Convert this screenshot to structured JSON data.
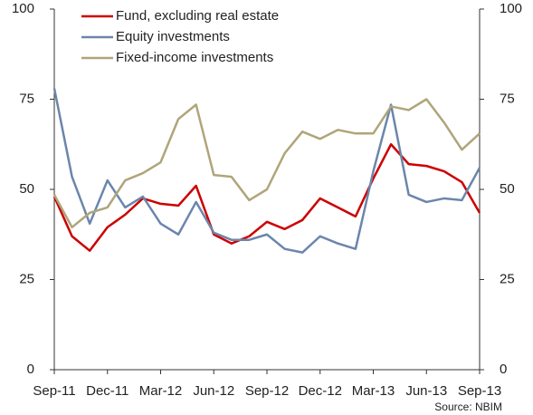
{
  "chart_data": {
    "type": "line",
    "categories": [
      "Sep-11",
      null,
      null,
      "Dec-11",
      null,
      null,
      "Mar-12",
      null,
      null,
      "Jun-12",
      null,
      null,
      "Sep-12",
      null,
      null,
      "Dec-12",
      null,
      null,
      "Mar-13",
      null,
      null,
      "Jun-13",
      null,
      null,
      "Sep-13"
    ],
    "series": [
      {
        "name": "Fund, excluding real estate",
        "color": "#cc0000",
        "values": [
          48,
          37,
          33,
          39.5,
          43,
          47.5,
          46,
          45.5,
          51,
          37.5,
          35,
          37,
          41,
          39,
          41.5,
          47.5,
          45,
          42.5,
          53,
          62.5,
          57,
          56.5,
          55,
          52,
          43.5
        ]
      },
      {
        "name": "Equity investments",
        "color": "#6b86ab",
        "values": [
          78,
          53.5,
          40.5,
          52.5,
          45,
          48,
          40.5,
          37.5,
          46.5,
          38,
          36,
          36,
          37.5,
          33.5,
          32.5,
          37,
          35,
          33.5,
          55,
          73.5,
          48.5,
          46.5,
          47.5,
          47,
          56
        ]
      },
      {
        "name": "Fixed-income investments",
        "color": "#b0a57a",
        "values": [
          48.5,
          39.5,
          43.5,
          45,
          52.5,
          54.5,
          57.5,
          69.5,
          73.5,
          54,
          53.5,
          47,
          50,
          60,
          66,
          64,
          66.5,
          65.5,
          65.5,
          73,
          72,
          75,
          68.5,
          61,
          65.5
        ]
      }
    ],
    "ylim": [
      0,
      100
    ],
    "yticks": [
      0,
      25,
      50,
      75,
      100
    ],
    "y2lim": [
      0,
      100
    ],
    "y2ticks": [
      0,
      25,
      50,
      75,
      100
    ],
    "source": "Source: NBIM"
  }
}
